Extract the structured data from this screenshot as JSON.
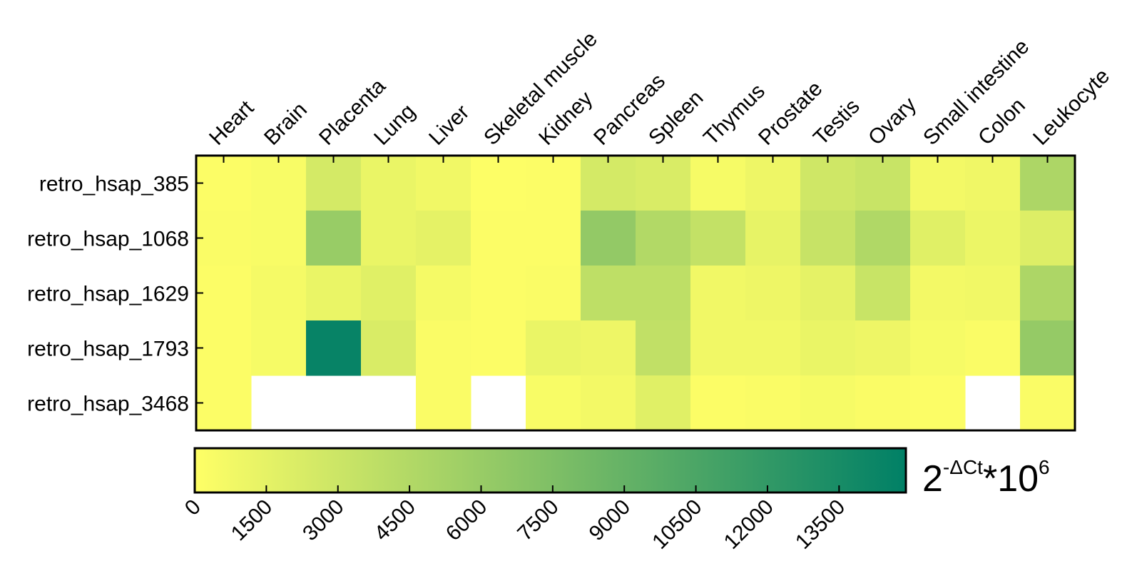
{
  "chart_data": {
    "type": "heatmap",
    "columns": [
      "Heart",
      "Brain",
      "Placenta",
      "Lung",
      "Liver",
      "Skeletal muscle",
      "Kidney",
      "Pancreas",
      "Spleen",
      "Thymus",
      "Prostate",
      "Testis",
      "Ovary",
      "Small intestine",
      "Colon",
      "Leukocyte"
    ],
    "rows": [
      "retro_hsap_385",
      "retro_hsap_1068",
      "retro_hsap_1629",
      "retro_hsap_1793",
      "retro_hsap_3468"
    ],
    "values": [
      [
        200,
        400,
        2500,
        1200,
        800,
        100,
        200,
        2500,
        2200,
        500,
        1000,
        2800,
        3200,
        700,
        900,
        4800
      ],
      [
        300,
        400,
        6000,
        1200,
        1500,
        200,
        200,
        6300,
        4500,
        3500,
        1400,
        3300,
        4600,
        1800,
        1100,
        2000
      ],
      [
        200,
        600,
        1200,
        1800,
        600,
        200,
        300,
        3800,
        3800,
        800,
        1000,
        1500,
        3200,
        700,
        800,
        4800
      ],
      [
        200,
        500,
        14500,
        2200,
        300,
        200,
        1200,
        1000,
        3600,
        800,
        800,
        1200,
        1000,
        500,
        300,
        6200
      ],
      [
        200,
        null,
        null,
        null,
        300,
        null,
        400,
        700,
        1800,
        200,
        300,
        500,
        300,
        200,
        null,
        300
      ]
    ],
    "colors": [
      "#ffff66",
      "#008066"
    ],
    "clim": [
      0,
      14900
    ],
    "cticks": [
      0,
      1500,
      3000,
      4500,
      6000,
      7500,
      9000,
      10500,
      12000,
      13500
    ],
    "colorbar_label": {
      "base": "2",
      "exp": "-ΔCt",
      "mid": "*10",
      "exp2": "6"
    }
  }
}
